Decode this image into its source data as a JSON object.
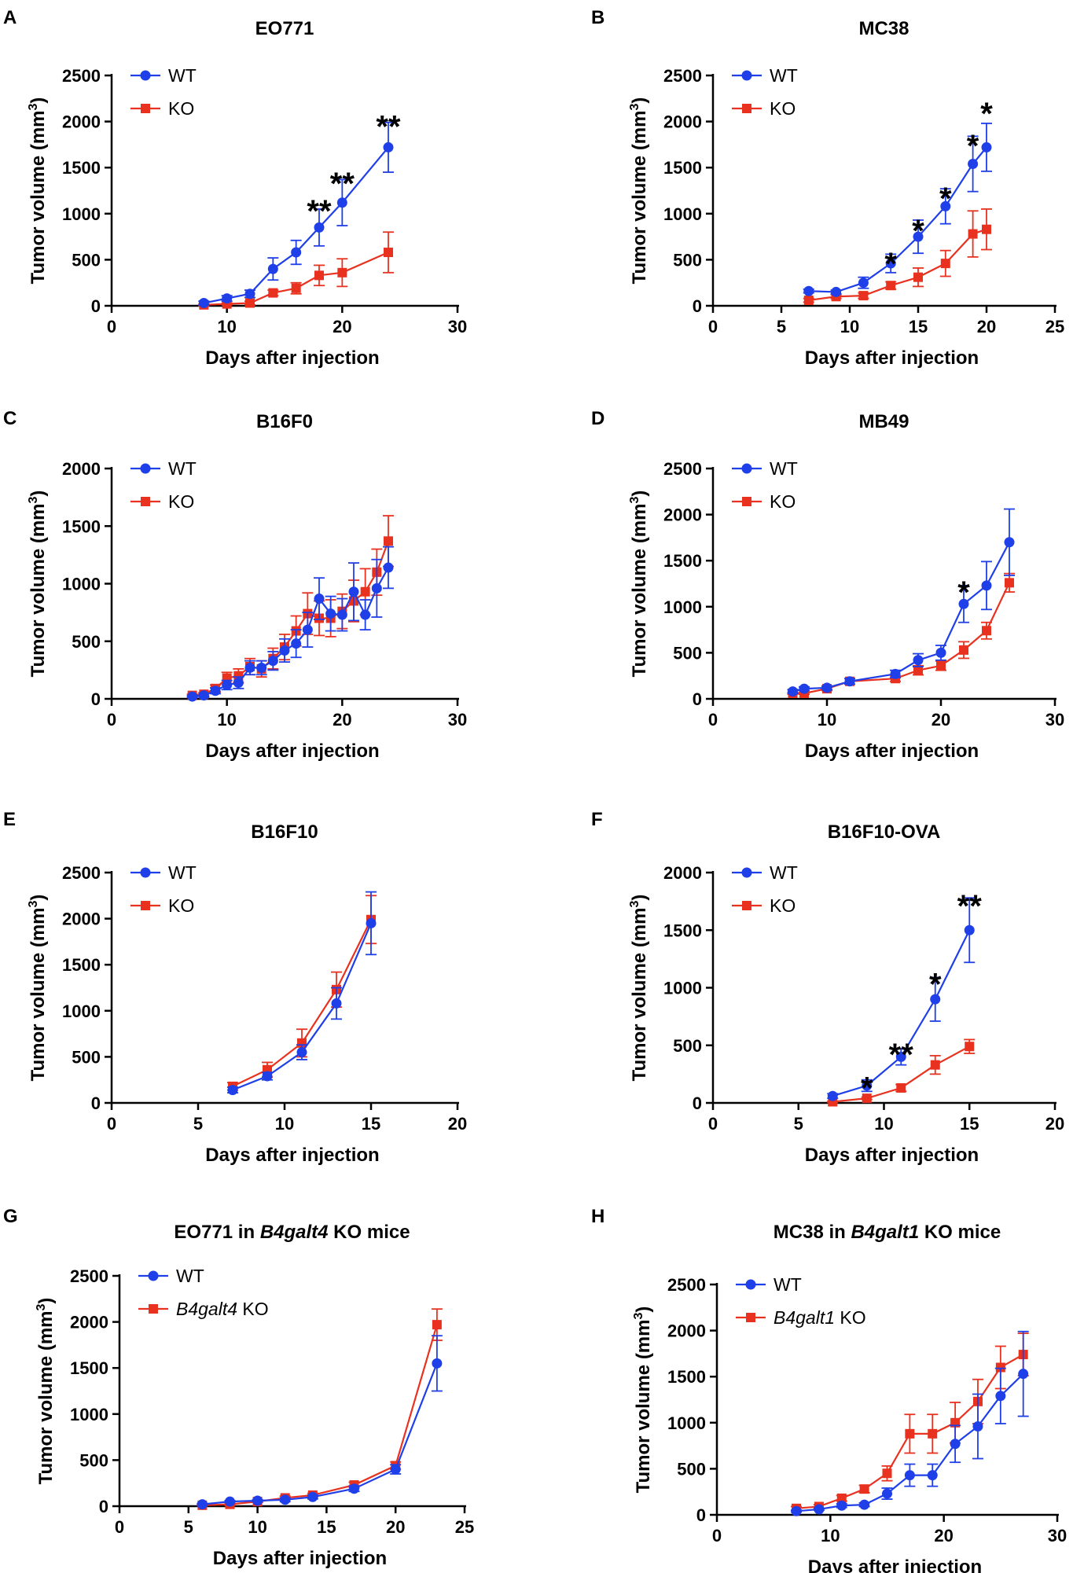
{
  "colors": {
    "wt": "#1f3fe8",
    "ko": "#e8321f"
  },
  "chart_data": [
    {
      "letter": "A",
      "title": "EO771",
      "type": "line",
      "xlabel": "Days after injection",
      "ylabel": "Tumor volume (mm",
      "ylabel_sup": "3",
      "ylabel_close": ")",
      "xlim": [
        0,
        30
      ],
      "ylim": [
        0,
        2500
      ],
      "xticks": [
        0,
        10,
        20,
        30
      ],
      "yticks": [
        0,
        500,
        1000,
        1500,
        2000,
        2500
      ],
      "legend": {
        "position": "top-left",
        "labels": [
          {
            "plain": "WT",
            "italic": ""
          },
          {
            "plain": " KO",
            "italic": ""
          }
        ]
      },
      "series": [
        {
          "name": "WT",
          "x": [
            8,
            10,
            12,
            14,
            16,
            18,
            20,
            24
          ],
          "y": [
            30,
            80,
            130,
            400,
            580,
            850,
            1120,
            1720
          ],
          "err": [
            20,
            30,
            40,
            120,
            130,
            200,
            250,
            270
          ]
        },
        {
          "name": "KO",
          "x": [
            8,
            10,
            12,
            14,
            16,
            18,
            20,
            24
          ],
          "y": [
            10,
            20,
            30,
            140,
            190,
            330,
            360,
            580
          ],
          "err": [
            10,
            10,
            20,
            30,
            60,
            110,
            150,
            220
          ]
        }
      ],
      "annotations": [
        {
          "x": 18,
          "y": 1150,
          "text": "**"
        },
        {
          "x": 20,
          "y": 1450,
          "text": "**"
        },
        {
          "x": 24,
          "y": 2070,
          "text": "**"
        }
      ]
    },
    {
      "letter": "B",
      "title": "MC38",
      "type": "line",
      "xlabel": "Days after injection",
      "ylabel": "Tumor volume (mm",
      "ylabel_sup": "3",
      "ylabel_close": ")",
      "xlim": [
        0,
        25
      ],
      "ylim": [
        0,
        2500
      ],
      "xticks": [
        0,
        5,
        10,
        15,
        20,
        25
      ],
      "yticks": [
        0,
        500,
        1000,
        1500,
        2000,
        2500
      ],
      "legend": {
        "position": "top-left",
        "labels": [
          {
            "plain": "WT",
            "italic": ""
          },
          {
            "plain": " KO",
            "italic": ""
          }
        ]
      },
      "series": [
        {
          "name": "WT",
          "x": [
            7,
            9,
            11,
            13,
            15,
            17,
            19,
            20
          ],
          "y": [
            160,
            150,
            250,
            460,
            750,
            1080,
            1540,
            1720
          ],
          "err": [
            20,
            20,
            60,
            100,
            180,
            190,
            300,
            260
          ]
        },
        {
          "name": "KO",
          "x": [
            7,
            9,
            11,
            13,
            15,
            17,
            19,
            20
          ],
          "y": [
            60,
            100,
            110,
            220,
            310,
            460,
            780,
            830
          ],
          "err": [
            20,
            20,
            30,
            40,
            100,
            140,
            250,
            220
          ]
        }
      ],
      "annotations": [
        {
          "x": 13,
          "y": 580,
          "text": "*"
        },
        {
          "x": 15,
          "y": 940,
          "text": "*"
        },
        {
          "x": 17,
          "y": 1290,
          "text": "*"
        },
        {
          "x": 19,
          "y": 1860,
          "text": "*"
        },
        {
          "x": 20,
          "y": 2210,
          "text": "*"
        }
      ]
    },
    {
      "letter": "C",
      "title": "B16F0",
      "type": "line",
      "xlabel": "Days after injection",
      "ylabel": "Tumor volume (mm",
      "ylabel_sup": "3",
      "ylabel_close": ")",
      "xlim": [
        0,
        30
      ],
      "ylim": [
        0,
        2000
      ],
      "xticks": [
        0,
        10,
        20,
        30
      ],
      "yticks": [
        0,
        500,
        1000,
        1500,
        2000
      ],
      "legend": {
        "position": "top-left",
        "labels": [
          {
            "plain": "WT",
            "italic": ""
          },
          {
            "plain": " KO",
            "italic": ""
          }
        ]
      },
      "series": [
        {
          "name": "WT",
          "x": [
            7,
            8,
            9,
            10,
            11,
            12,
            13,
            14,
            15,
            16,
            17,
            18,
            19,
            20,
            21,
            22,
            23,
            24
          ],
          "y": [
            20,
            30,
            70,
            120,
            140,
            270,
            270,
            330,
            420,
            480,
            600,
            870,
            740,
            730,
            930,
            730,
            960,
            1140
          ],
          "err": [
            10,
            15,
            25,
            40,
            50,
            60,
            60,
            80,
            100,
            120,
            150,
            180,
            150,
            140,
            250,
            130,
            250,
            180
          ]
        },
        {
          "name": "KO",
          "x": [
            7,
            8,
            9,
            10,
            11,
            12,
            13,
            14,
            15,
            16,
            17,
            18,
            19,
            20,
            21,
            22,
            23,
            24
          ],
          "y": [
            30,
            40,
            90,
            180,
            200,
            280,
            260,
            350,
            450,
            590,
            740,
            700,
            700,
            760,
            850,
            930,
            1100,
            1370
          ],
          "err": [
            10,
            15,
            30,
            50,
            60,
            70,
            70,
            90,
            110,
            130,
            180,
            150,
            160,
            150,
            180,
            200,
            200,
            220
          ]
        }
      ],
      "annotations": []
    },
    {
      "letter": "D",
      "title": "MB49",
      "type": "line",
      "xlabel": "Days after injection",
      "ylabel": "Tumor volume (mm",
      "ylabel_sup": "3",
      "ylabel_close": ")",
      "xlim": [
        0,
        30
      ],
      "ylim": [
        0,
        2500
      ],
      "xticks": [
        0,
        10,
        20,
        30
      ],
      "yticks": [
        0,
        500,
        1000,
        1500,
        2000,
        2500
      ],
      "legend": {
        "position": "top-left",
        "labels": [
          {
            "plain": "WT",
            "italic": ""
          },
          {
            "plain": " KO",
            "italic": ""
          }
        ]
      },
      "series": [
        {
          "name": "WT",
          "x": [
            7,
            8,
            10,
            12,
            16,
            18,
            20,
            22,
            24,
            26
          ],
          "y": [
            80,
            110,
            120,
            190,
            270,
            420,
            500,
            1030,
            1230,
            1700
          ],
          "err": [
            20,
            20,
            20,
            30,
            40,
            70,
            80,
            200,
            260,
            360
          ]
        },
        {
          "name": "KO",
          "x": [
            7,
            8,
            10,
            12,
            16,
            18,
            20,
            22,
            24,
            26
          ],
          "y": [
            60,
            60,
            110,
            190,
            220,
            310,
            360,
            530,
            740,
            1260
          ],
          "err": [
            10,
            10,
            20,
            30,
            30,
            50,
            50,
            90,
            90,
            100
          ]
        }
      ],
      "annotations": [
        {
          "x": 22,
          "y": 1280,
          "text": "*"
        }
      ]
    },
    {
      "letter": "E",
      "title": "B16F10",
      "type": "line",
      "xlabel": "Days after injection",
      "ylabel": "Tumor volume (mm",
      "ylabel_sup": "3",
      "ylabel_close": ")",
      "xlim": [
        0,
        20
      ],
      "ylim": [
        0,
        2500
      ],
      "xticks": [
        0,
        5,
        10,
        15,
        20
      ],
      "yticks": [
        0,
        500,
        1000,
        1500,
        2000,
        2500
      ],
      "legend": {
        "position": "top-left",
        "labels": [
          {
            "plain": "WT",
            "italic": ""
          },
          {
            "plain": " KO",
            "italic": ""
          }
        ]
      },
      "series": [
        {
          "name": "WT",
          "x": [
            7,
            9,
            11,
            13,
            15
          ],
          "y": [
            140,
            290,
            550,
            1080,
            1950
          ],
          "err": [
            30,
            40,
            80,
            170,
            340
          ]
        },
        {
          "name": "KO",
          "x": [
            7,
            9,
            11,
            13,
            15
          ],
          "y": [
            180,
            360,
            650,
            1230,
            1990
          ],
          "err": [
            40,
            80,
            150,
            190,
            260
          ]
        }
      ],
      "annotations": []
    },
    {
      "letter": "F",
      "title": "B16F10-OVA",
      "type": "line",
      "xlabel": "Days after injection",
      "ylabel": "Tumor volume (mm",
      "ylabel_sup": "3",
      "ylabel_close": ")",
      "xlim": [
        0,
        20
      ],
      "ylim": [
        0,
        2000
      ],
      "xticks": [
        0,
        5,
        10,
        15,
        20
      ],
      "yticks": [
        0,
        500,
        1000,
        1500,
        2000
      ],
      "legend": {
        "position": "top-left",
        "labels": [
          {
            "plain": "WT",
            "italic": ""
          },
          {
            "plain": " KO",
            "italic": ""
          }
        ]
      },
      "series": [
        {
          "name": "WT",
          "x": [
            7,
            9,
            11,
            13,
            15
          ],
          "y": [
            60,
            150,
            400,
            900,
            1500
          ],
          "err": [
            20,
            50,
            70,
            190,
            280
          ]
        },
        {
          "name": "KO",
          "x": [
            7,
            9,
            11,
            13,
            15
          ],
          "y": [
            10,
            40,
            130,
            330,
            490
          ],
          "err": [
            5,
            10,
            30,
            80,
            60
          ]
        }
      ],
      "annotations": [
        {
          "x": 9,
          "y": 230,
          "text": "*"
        },
        {
          "x": 11,
          "y": 520,
          "text": "**"
        },
        {
          "x": 13,
          "y": 1130,
          "text": "*"
        },
        {
          "x": 15,
          "y": 1810,
          "text": "**"
        }
      ]
    },
    {
      "letter": "G",
      "title_plain": "EO771 in ",
      "title_italic": "B4galt4",
      "title_rest": " KO mice",
      "type": "line",
      "xlabel": "Days after injection",
      "ylabel": "Tumor volume (mm",
      "ylabel_sup": "3",
      "ylabel_close": ")",
      "xlim": [
        0,
        25
      ],
      "ylim": [
        0,
        2500
      ],
      "xticks": [
        0,
        5,
        10,
        15,
        20,
        25
      ],
      "yticks": [
        0,
        500,
        1000,
        1500,
        2000,
        2500
      ],
      "legend": {
        "position": "top-left",
        "labels": [
          {
            "plain": "WT",
            "italic": ""
          },
          {
            "plain": " KO",
            "italic": "B4galt4"
          }
        ]
      },
      "series": [
        {
          "name": "WT",
          "x": [
            6,
            8,
            10,
            12,
            14,
            17,
            20,
            23
          ],
          "y": [
            20,
            50,
            60,
            70,
            100,
            190,
            400,
            1550
          ],
          "err": [
            10,
            10,
            10,
            20,
            20,
            30,
            50,
            300
          ]
        },
        {
          "name": "B4galt4 KO",
          "x": [
            6,
            8,
            10,
            12,
            14,
            17,
            20,
            23
          ],
          "y": [
            10,
            20,
            50,
            90,
            120,
            230,
            440,
            1970
          ],
          "err": [
            5,
            10,
            10,
            20,
            20,
            30,
            40,
            170
          ]
        }
      ],
      "annotations": []
    },
    {
      "letter": "H",
      "title_plain": "MC38 in ",
      "title_italic": "B4galt1",
      "title_rest": " KO mice",
      "type": "line",
      "xlabel": "Days after injection",
      "ylabel": "Tumor volume (mm",
      "ylabel_sup": "3",
      "ylabel_close": ")",
      "xlim": [
        0,
        30
      ],
      "ylim": [
        0,
        2500
      ],
      "xticks": [
        0,
        10,
        20,
        30
      ],
      "yticks": [
        0,
        500,
        1000,
        1500,
        2000,
        2500
      ],
      "legend": {
        "position": "top-left",
        "labels": [
          {
            "plain": "WT",
            "italic": ""
          },
          {
            "plain": " KO",
            "italic": "B4galt1"
          }
        ]
      },
      "series": [
        {
          "name": "WT",
          "x": [
            7,
            9,
            11,
            13,
            15,
            17,
            19,
            21,
            23,
            25,
            27
          ],
          "y": [
            40,
            60,
            100,
            110,
            230,
            430,
            430,
            770,
            960,
            1290,
            1530
          ],
          "err": [
            10,
            10,
            20,
            20,
            60,
            120,
            120,
            200,
            350,
            300,
            460
          ]
        },
        {
          "name": "B4galt1 KO",
          "x": [
            7,
            9,
            11,
            13,
            15,
            17,
            19,
            21,
            23,
            25,
            27
          ],
          "y": [
            70,
            90,
            180,
            280,
            450,
            880,
            880,
            1000,
            1230,
            1600,
            1740
          ],
          "err": [
            20,
            20,
            30,
            40,
            80,
            210,
            210,
            220,
            240,
            230,
            230
          ]
        }
      ],
      "annotations": []
    }
  ]
}
